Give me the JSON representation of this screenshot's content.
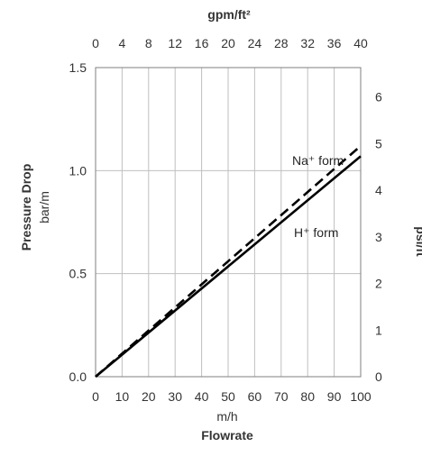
{
  "chart_data": {
    "type": "line",
    "x": [
      0,
      100
    ],
    "xlim": [
      0,
      100
    ],
    "ylim": [
      0,
      1.5
    ],
    "series": [
      {
        "name": "Na⁺ form",
        "x": [
          0,
          100
        ],
        "y": [
          0,
          1.12
        ],
        "style": "dashed",
        "color": "#000000"
      },
      {
        "name": "H⁺ form",
        "x": [
          0,
          100
        ],
        "y": [
          0,
          1.07
        ],
        "style": "solid",
        "color": "#000000"
      }
    ],
    "axes": {
      "bottom": {
        "unit": "m/h",
        "label": "Flowrate",
        "ticks": [
          "0",
          "10",
          "20",
          "30",
          "40",
          "50",
          "60",
          "70",
          "80",
          "90",
          "100"
        ]
      },
      "top": {
        "unit": "gpm/ft²",
        "ticks": [
          "0",
          "4",
          "8",
          "12",
          "16",
          "20",
          "24",
          "28",
          "32",
          "36",
          "40"
        ],
        "range": [
          0,
          40
        ]
      },
      "left": {
        "label": "Pressure Drop",
        "unit": "bar/m",
        "ticks": [
          "0.0",
          "0.5",
          "1.0",
          "1.5"
        ]
      },
      "right": {
        "label": "psi/ft",
        "ticks": [
          "0",
          "1",
          "2",
          "3",
          "4",
          "5",
          "6"
        ],
        "range": [
          0,
          6.63
        ]
      }
    },
    "annotations": [
      {
        "text": "Na⁺ form",
        "series": "Na⁺ form"
      },
      {
        "text": "H⁺ form",
        "series": "H⁺ form"
      }
    ],
    "grid": {
      "vertical": true,
      "horizontal": true
    }
  },
  "colors": {
    "grid": "#bfbfbf",
    "axis": "#7f7f7f",
    "line": "#000000",
    "text": "#333333"
  }
}
